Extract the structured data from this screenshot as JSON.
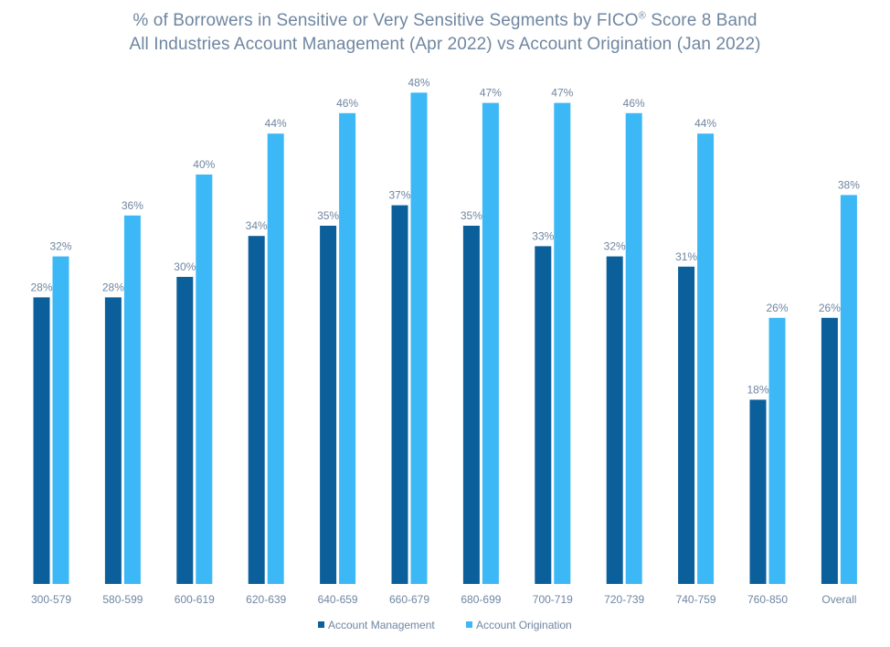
{
  "chart_data": {
    "type": "bar",
    "title": "% of Borrowers in Sensitive or Very Sensitive Segments by FICO",
    "title_superscript": "®",
    "title_suffix": " Score 8 Band",
    "subtitle": "All Industries Account Management (Apr 2022) vs Account Origination (Jan 2022)",
    "categories": [
      "300-579",
      "580-599",
      "600-619",
      "620-639",
      "640-659",
      "660-679",
      "680-699",
      "700-719",
      "720-739",
      "740-759",
      "760-850",
      "Overall"
    ],
    "series": [
      {
        "name": "Account Management",
        "color": "#0b5f9a",
        "values": [
          28,
          28,
          30,
          34,
          35,
          37,
          35,
          33,
          32,
          31,
          18,
          26
        ]
      },
      {
        "name": "Account Origination",
        "color": "#3bb8f5",
        "values": [
          32,
          36,
          40,
          44,
          46,
          48,
          47,
          47,
          46,
          44,
          26,
          38
        ]
      }
    ],
    "value_suffix": "%",
    "ylim": [
      0,
      50
    ],
    "grid": false,
    "legend_position": "bottom"
  }
}
